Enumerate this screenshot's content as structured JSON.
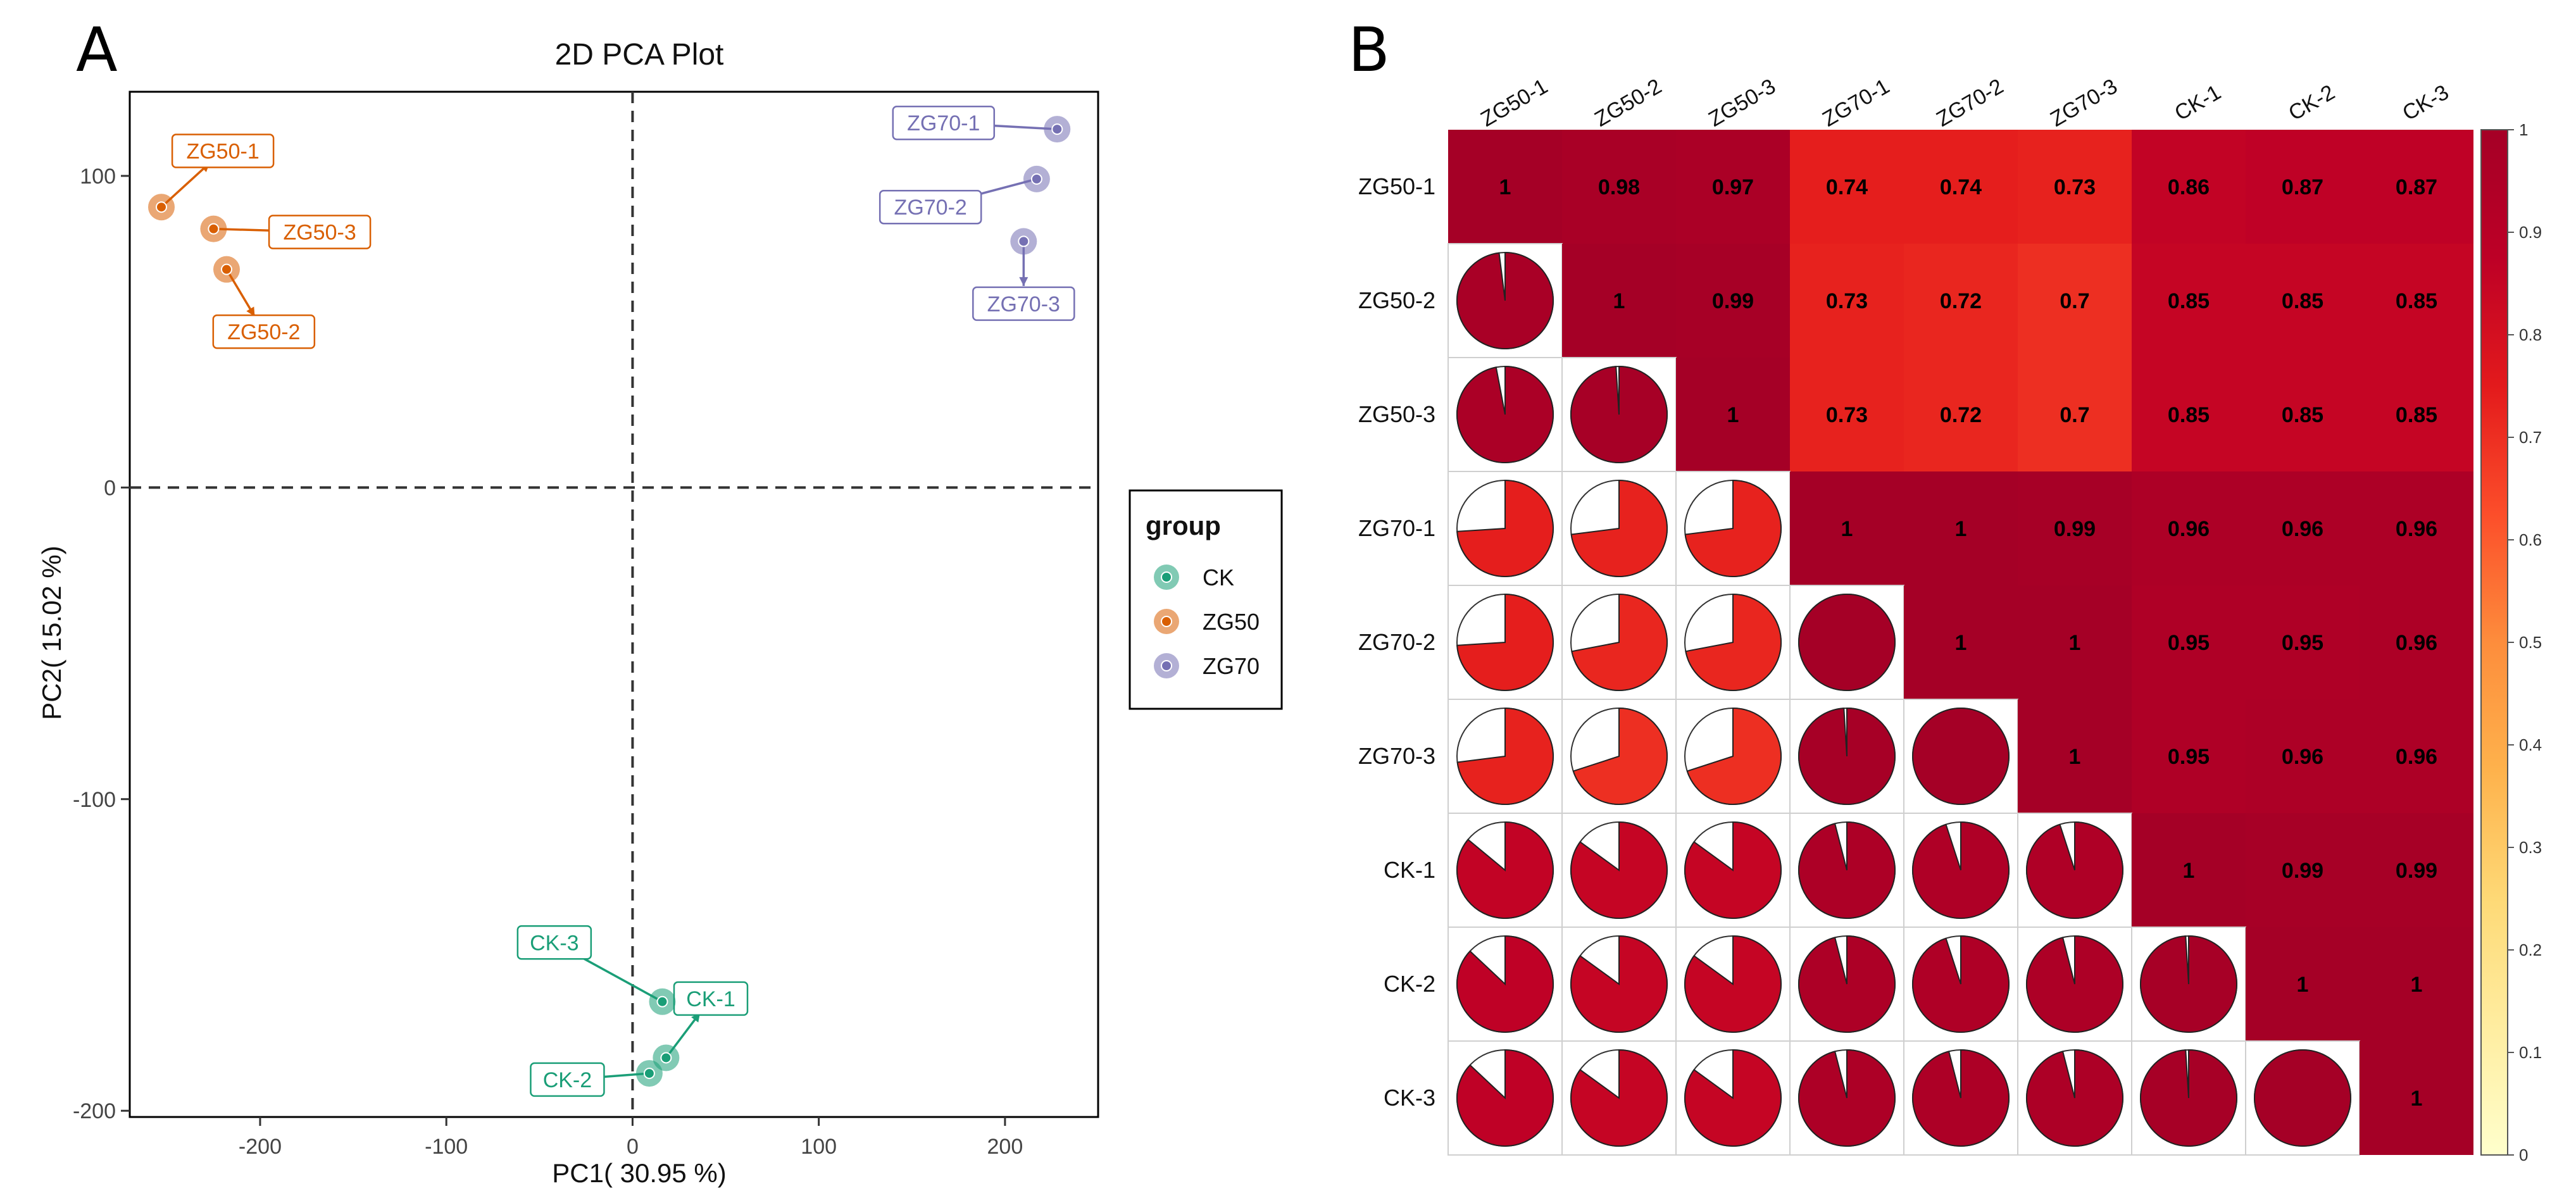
{
  "chart_data": [
    {
      "type": "scatter",
      "panel_label": "A",
      "title": "2D PCA Plot",
      "xlabel": "PC1( 30.95 %)",
      "ylabel": "PC2( 15.02 %)",
      "xlim": [
        -270,
        250
      ],
      "ylim": [
        -202,
        127
      ],
      "x_ticks": [
        -200,
        -100,
        0,
        100,
        200
      ],
      "y_ticks": [
        -200,
        -100,
        0,
        100
      ],
      "ref_lines": {
        "x": 0,
        "y": 0
      },
      "legend": {
        "title": "group",
        "position": "right",
        "entries": [
          {
            "name": "CK",
            "color": "#1a9e77"
          },
          {
            "name": "ZG50",
            "color": "#d95f02"
          },
          {
            "name": "ZG70",
            "color": "#7570b3"
          }
        ]
      },
      "series": [
        {
          "name": "CK",
          "color": "#1a9e77",
          "points": [
            {
              "label": "CK-1",
              "x": 18,
              "y": -183,
              "label_x": 42,
              "label_y": -164
            },
            {
              "label": "CK-2",
              "x": 9,
              "y": -188,
              "label_x": -35,
              "label_y": -190
            },
            {
              "label": "CK-3",
              "x": 16,
              "y": -165,
              "label_x": -42,
              "label_y": -146
            }
          ]
        },
        {
          "name": "ZG50",
          "color": "#d95f02",
          "points": [
            {
              "label": "ZG50-1",
              "x": -253,
              "y": 90,
              "label_x": -220,
              "label_y": 108
            },
            {
              "label": "ZG50-2",
              "x": -218,
              "y": 70,
              "label_x": -198,
              "label_y": 50
            },
            {
              "label": "ZG50-3",
              "x": -225,
              "y": 83,
              "label_x": -168,
              "label_y": 82
            }
          ]
        },
        {
          "name": "ZG70",
          "color": "#7570b3",
          "points": [
            {
              "label": "ZG70-1",
              "x": 228,
              "y": 115,
              "label_x": 167,
              "label_y": 117
            },
            {
              "label": "ZG70-2",
              "x": 217,
              "y": 99,
              "label_x": 160,
              "label_y": 90
            },
            {
              "label": "ZG70-3",
              "x": 210,
              "y": 79,
              "label_x": 210,
              "label_y": 59
            }
          ]
        }
      ]
    },
    {
      "type": "heatmap",
      "panel_label": "B",
      "style": "correlation: pies in lower triangle, numeric values in upper triangle and diagonal",
      "labels": [
        "ZG50-1",
        "ZG50-2",
        "ZG50-3",
        "ZG70-1",
        "ZG70-2",
        "ZG70-3",
        "CK-1",
        "CK-2",
        "CK-3"
      ],
      "matrix": [
        [
          1,
          0.98,
          0.97,
          0.74,
          0.74,
          0.73,
          0.86,
          0.87,
          0.87
        ],
        [
          0.98,
          1,
          0.99,
          0.73,
          0.72,
          0.7,
          0.85,
          0.85,
          0.85
        ],
        [
          0.97,
          0.99,
          1,
          0.73,
          0.72,
          0.7,
          0.85,
          0.85,
          0.85
        ],
        [
          0.74,
          0.73,
          0.73,
          1,
          1,
          0.99,
          0.96,
          0.96,
          0.96
        ],
        [
          0.74,
          0.72,
          0.72,
          1,
          1,
          1,
          0.95,
          0.95,
          0.96
        ],
        [
          0.73,
          0.7,
          0.7,
          0.99,
          1,
          1,
          0.95,
          0.96,
          0.96
        ],
        [
          0.86,
          0.85,
          0.85,
          0.96,
          0.95,
          0.95,
          1,
          0.99,
          0.99
        ],
        [
          0.87,
          0.85,
          0.85,
          0.96,
          0.95,
          0.96,
          0.99,
          1,
          1
        ],
        [
          0.87,
          0.85,
          0.85,
          0.96,
          0.96,
          0.96,
          0.99,
          1,
          1
        ]
      ],
      "colorbar": {
        "min": 0,
        "max": 1,
        "ticks": [
          "0",
          "0.1",
          "0.2",
          "0.3",
          "0.4",
          "0.5",
          "0.6",
          "0.7",
          "0.8",
          "0.9",
          "1"
        ],
        "colors": [
          "#ffffcc",
          "#ffeda0",
          "#fed976",
          "#feb24c",
          "#fd8d3c",
          "#fc4e2a",
          "#e31a1c",
          "#bd0026",
          "#a50026"
        ]
      }
    }
  ]
}
